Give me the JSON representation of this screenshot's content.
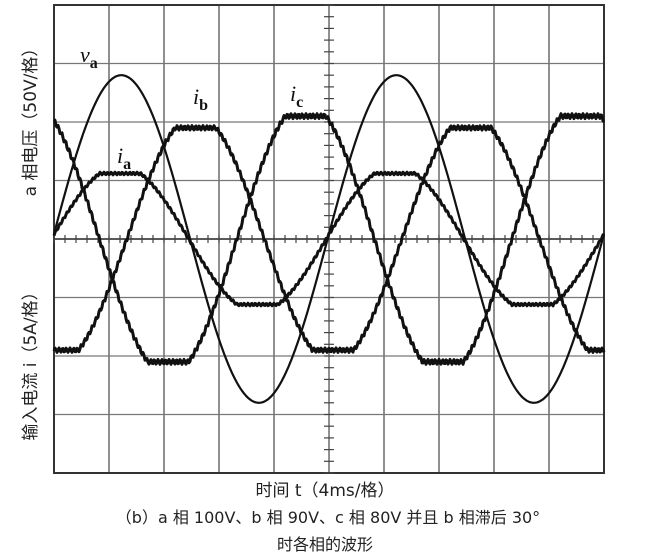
{
  "chart_data": {
    "type": "line",
    "xlabel": "时间 t（4ms/格）",
    "ylabel_upper": "a 相电压（50V/格）",
    "ylabel_lower": "输入电流 i（5A/格）",
    "caption_line1": "（b）a 相 100V、b 相 90V、c 相 80V 并且 b 相滞后 30°",
    "caption_line2": "时各相的波形",
    "x_unit": "ms",
    "x_per_div": 4,
    "x_divisions": 10,
    "xlim": [
      0,
      40
    ],
    "y_divisions": 8,
    "voltage_per_div": 50,
    "current_per_div": 5,
    "grid": true,
    "series": [
      {
        "name": "v",
        "sub": "a",
        "unit": "V",
        "amplitude": 140,
        "period_ms": 20,
        "peak_time_ms": 4.9,
        "flat_top": false
      },
      {
        "name": "i",
        "sub": "a",
        "unit": "A",
        "amplitude": 5.6,
        "period_ms": 20,
        "peak_time_ms": 4.8,
        "flat_top": true
      },
      {
        "name": "i",
        "sub": "b",
        "unit": "A",
        "amplitude": 9.5,
        "period_ms": 20,
        "peak_time_ms": 10.3,
        "flat_top": true
      },
      {
        "name": "i",
        "sub": "c",
        "unit": "A",
        "amplitude": 10.5,
        "period_ms": 20,
        "peak_time_ms": 18.3,
        "flat_top": true
      }
    ]
  }
}
